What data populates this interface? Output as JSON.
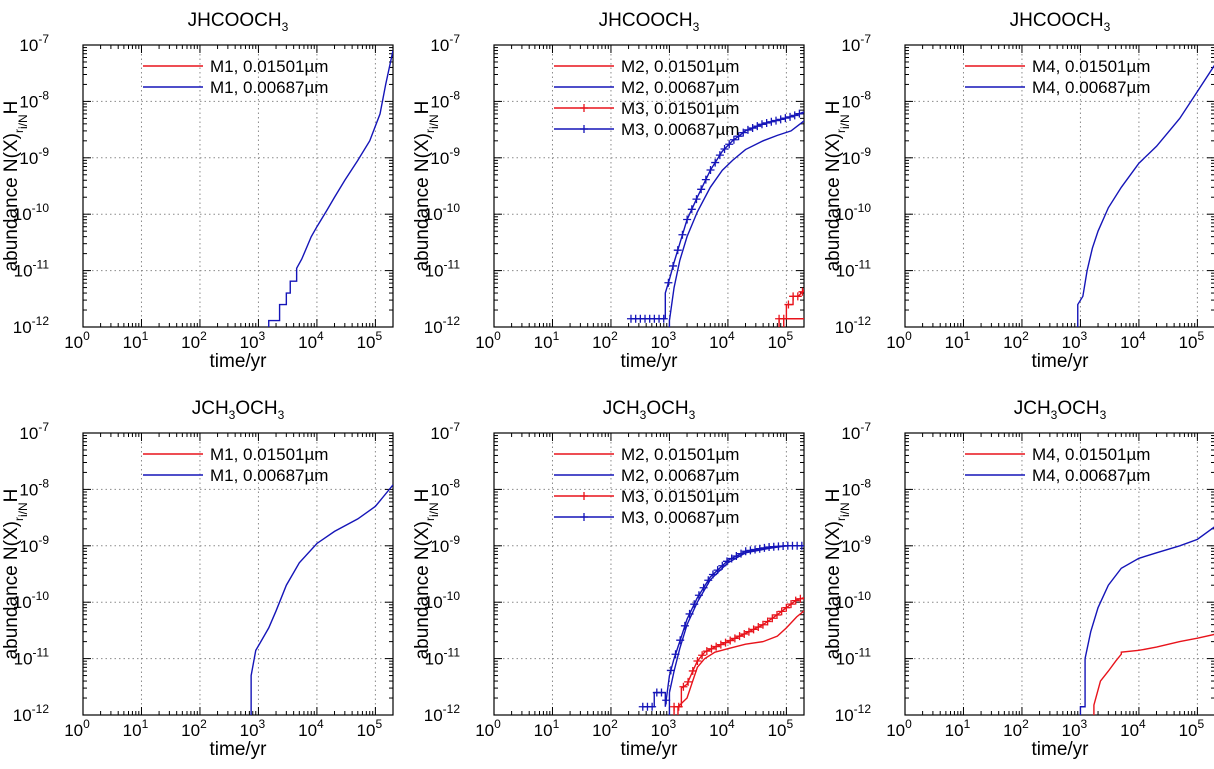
{
  "figure": {
    "panels_note": "6 panels, 2 rows x 3 columns"
  },
  "colors": {
    "red": "#e8131b",
    "blue": "#1515b8"
  },
  "chart_data": [
    {
      "type": "line",
      "title": [
        "J",
        "HCOOCH",
        "3"
      ],
      "xlabel": "time/yr",
      "ylabel": "abundance N(X)_r_i/N_H",
      "xscale": "log",
      "yscale": "log",
      "xlim": [
        1,
        200000
      ],
      "ylim": [
        1e-12,
        1e-07
      ],
      "xticks": [
        "10^0",
        "10^1",
        "10^2",
        "10^3",
        "10^4",
        "10^5"
      ],
      "yticks": [
        "10^-12",
        "10^-11",
        "10^-10",
        "10^-9",
        "10^-8",
        "10^-7"
      ],
      "grid": true,
      "legend_position": "top-left",
      "series": [
        {
          "name": "M1, 0.01501µm",
          "color": "red",
          "marker": false,
          "x": [],
          "y": []
        },
        {
          "name": "M1, 0.00687µm",
          "color": "blue",
          "marker": false,
          "x": [
            1500,
            1500,
            2300,
            2300,
            3000,
            3000,
            3500,
            3500,
            4500,
            4500,
            5500,
            6500,
            8000,
            10000,
            15000,
            20000,
            30000,
            50000,
            80000,
            120000,
            150000,
            200000
          ],
          "y": [
            1e-12,
            1.3e-12,
            1.3e-12,
            2.5e-12,
            2.5e-12,
            4e-12,
            4e-12,
            6.5e-12,
            6.5e-12,
            1.1e-11,
            1.6e-11,
            2.4e-11,
            4e-11,
            6e-11,
            1.2e-10,
            2e-10,
            4e-10,
            9e-10,
            2e-09,
            6e-09,
            2e-08,
            8e-08
          ]
        }
      ]
    },
    {
      "type": "line",
      "title": [
        "J",
        "HCOOCH",
        "3"
      ],
      "xlabel": "time/yr",
      "ylabel": "abundance N(X)_r_i/N_H",
      "xscale": "log",
      "yscale": "log",
      "xlim": [
        1,
        200000
      ],
      "ylim": [
        1e-12,
        1e-07
      ],
      "xticks": [
        "10^0",
        "10^1",
        "10^2",
        "10^3",
        "10^4",
        "10^5"
      ],
      "yticks": [
        "10^-12",
        "10^-11",
        "10^-10",
        "10^-9",
        "10^-8",
        "10^-7"
      ],
      "grid": true,
      "legend_position": "top-left",
      "series": [
        {
          "name": "M2, 0.01501µm",
          "color": "red",
          "marker": false,
          "x": [
            90000,
            90000,
            200000
          ],
          "y": [
            1e-12,
            1.4e-12,
            1.4e-12
          ]
        },
        {
          "name": "M2, 0.00687µm",
          "color": "blue",
          "marker": false,
          "x": [
            1000,
            1000,
            1200,
            1500,
            2000,
            3000,
            5000,
            8000,
            12000,
            20000,
            40000,
            70000,
            120000,
            200000
          ],
          "y": [
            1e-12,
            1.3e-12,
            5e-12,
            1.5e-11,
            4e-11,
            1.1e-10,
            3e-10,
            6e-10,
            9e-10,
            1.4e-09,
            2e-09,
            2.5e-09,
            3e-09,
            4.5e-09
          ]
        },
        {
          "name": "M3, 0.01501µm",
          "color": "red",
          "marker": true,
          "x": [
            75000,
            75000,
            100000,
            100000,
            130000,
            130000,
            160000,
            200000
          ],
          "y": [
            1e-12,
            1.4e-12,
            1.4e-12,
            2.5e-12,
            2.5e-12,
            3.5e-12,
            3.5e-12,
            4.5e-12
          ]
        },
        {
          "name": "M3, 0.00687µm",
          "color": "blue",
          "marker": true,
          "x": [
            220,
            330,
            480,
            620,
            850,
            850,
            1000,
            1200,
            1500,
            2000,
            3000,
            5000,
            8000,
            12000,
            20000,
            40000,
            80000,
            130000,
            200000
          ],
          "y": [
            1.4e-12,
            1.4e-12,
            1.4e-12,
            1.4e-12,
            1.4e-12,
            4e-12,
            7e-12,
            1.4e-11,
            3e-11,
            8e-11,
            2e-10,
            6e-10,
            1.3e-09,
            2e-09,
            3e-09,
            4e-09,
            4.8e-09,
            5.5e-09,
            6.5e-09
          ]
        }
      ]
    },
    {
      "type": "line",
      "title": [
        "J",
        "HCOOCH",
        "3"
      ],
      "xlabel": "time/yr",
      "ylabel": "abundance N(X)_r_i/N_H",
      "xscale": "log",
      "yscale": "log",
      "xlim": [
        1,
        200000
      ],
      "ylim": [
        1e-12,
        1e-07
      ],
      "xticks": [
        "10^0",
        "10^1",
        "10^2",
        "10^3",
        "10^4",
        "10^5"
      ],
      "yticks": [
        "10^-12",
        "10^-11",
        "10^-10",
        "10^-9",
        "10^-8",
        "10^-7"
      ],
      "grid": true,
      "legend_position": "top-left",
      "series": [
        {
          "name": "M4, 0.01501µm",
          "color": "red",
          "marker": false,
          "x": [],
          "y": []
        },
        {
          "name": "M4, 0.00687µm",
          "color": "blue",
          "marker": false,
          "x": [
            900,
            900,
            1100,
            1300,
            1600,
            2000,
            3000,
            5000,
            10000,
            20000,
            50000,
            100000,
            200000
          ],
          "y": [
            1e-12,
            2.5e-12,
            3.5e-12,
            1e-11,
            2.5e-11,
            5e-11,
            1.3e-10,
            3e-10,
            8e-10,
            1.6e-09,
            5e-09,
            1.5e-08,
            4.5e-08
          ]
        }
      ]
    },
    {
      "type": "line",
      "title": [
        "J",
        "CH",
        "3",
        "OCH",
        "3"
      ],
      "xlabel": "time/yr",
      "ylabel": "abundance N(X)_r_i/N_H",
      "xscale": "log",
      "yscale": "log",
      "xlim": [
        1,
        200000
      ],
      "ylim": [
        1e-12,
        1e-07
      ],
      "xticks": [
        "10^0",
        "10^1",
        "10^2",
        "10^3",
        "10^4",
        "10^5"
      ],
      "yticks": [
        "10^-12",
        "10^-11",
        "10^-10",
        "10^-9",
        "10^-8",
        "10^-7"
      ],
      "grid": true,
      "legend_position": "top-left",
      "series": [
        {
          "name": "M1, 0.01501µm",
          "color": "red",
          "marker": false,
          "x": [],
          "y": []
        },
        {
          "name": "M1, 0.00687µm",
          "color": "blue",
          "marker": false,
          "x": [
            750,
            750,
            900,
            1100,
            1500,
            2000,
            3000,
            5000,
            10000,
            20000,
            50000,
            100000,
            200000
          ],
          "y": [
            1e-12,
            5e-12,
            1.4e-11,
            2e-11,
            3.5e-11,
            7e-11,
            2e-10,
            5e-10,
            1.1e-09,
            1.8e-09,
            3e-09,
            5e-09,
            1.2e-08
          ]
        }
      ]
    },
    {
      "type": "line",
      "title": [
        "J",
        "CH",
        "3",
        "OCH",
        "3"
      ],
      "xlabel": "time/yr",
      "ylabel": "abundance N(X)_r_i/N_H",
      "xscale": "log",
      "yscale": "log",
      "xlim": [
        1,
        200000
      ],
      "ylim": [
        1e-12,
        1e-07
      ],
      "xticks": [
        "10^0",
        "10^1",
        "10^2",
        "10^3",
        "10^4",
        "10^5"
      ],
      "yticks": [
        "10^-12",
        "10^-11",
        "10^-10",
        "10^-9",
        "10^-8",
        "10^-7"
      ],
      "grid": true,
      "legend_position": "top-left",
      "series": [
        {
          "name": "M2, 0.01501µm",
          "color": "red",
          "marker": false,
          "x": [
            1400,
            1400,
            2000,
            2500,
            3000,
            4000,
            6000,
            10000,
            20000,
            40000,
            70000,
            100000,
            150000,
            200000
          ],
          "y": [
            1e-12,
            1.4e-12,
            2e-12,
            4e-12,
            7e-12,
            1e-11,
            1.3e-11,
            1.5e-11,
            1.8e-11,
            2e-11,
            2.5e-11,
            3.5e-11,
            5.5e-11,
            7e-11
          ]
        },
        {
          "name": "M2, 0.00687µm",
          "color": "blue",
          "marker": false,
          "x": [
            1000,
            1000,
            1200,
            1500,
            2000,
            3000,
            5000,
            10000,
            20000,
            50000,
            100000,
            200000
          ],
          "y": [
            1e-12,
            2.5e-12,
            6e-12,
            1.5e-11,
            4e-11,
            1e-10,
            2.5e-10,
            5e-10,
            7.5e-10,
            9e-10,
            1e-09,
            1e-09
          ]
        },
        {
          "name": "M3, 0.01501µm",
          "color": "red",
          "marker": true,
          "x": [
            1200,
            1200,
            1600,
            1600,
            2000,
            2500,
            3000,
            4000,
            6000,
            10000,
            20000,
            40000,
            70000,
            100000,
            150000,
            200000
          ],
          "y": [
            1e-12,
            1.4e-12,
            1.4e-12,
            3e-12,
            3.5e-12,
            6e-12,
            9e-12,
            1.3e-11,
            1.6e-11,
            2e-11,
            2.8e-11,
            4e-11,
            6e-11,
            8e-11,
            1.1e-10,
            1.2e-10
          ]
        },
        {
          "name": "M3, 0.00687µm",
          "color": "blue",
          "marker": true,
          "x": [
            350,
            450,
            550,
            550,
            700,
            850,
            850,
            1000,
            1200,
            1500,
            2000,
            3000,
            5000,
            10000,
            20000,
            50000,
            100000,
            200000
          ],
          "y": [
            1.4e-12,
            1.4e-12,
            1.4e-12,
            2.5e-12,
            2.5e-12,
            2.5e-12,
            1.4e-12,
            5e-12,
            1e-11,
            2e-11,
            5e-11,
            1.2e-10,
            2.8e-10,
            5.5e-10,
            8e-10,
            9.5e-10,
            1e-09,
            1e-09
          ]
        }
      ]
    },
    {
      "type": "line",
      "title": [
        "J",
        "CH",
        "3",
        "OCH",
        "3"
      ],
      "xlabel": "time/yr",
      "ylabel": "abundance N(X)_r_i/N_H",
      "xscale": "log",
      "yscale": "log",
      "xlim": [
        1,
        200000
      ],
      "ylim": [
        1e-12,
        1e-07
      ],
      "xticks": [
        "10^0",
        "10^1",
        "10^2",
        "10^3",
        "10^4",
        "10^5"
      ],
      "yticks": [
        "10^-12",
        "10^-11",
        "10^-10",
        "10^-9",
        "10^-8",
        "10^-7"
      ],
      "grid": true,
      "legend_position": "top-left",
      "series": [
        {
          "name": "M4, 0.01501µm",
          "color": "red",
          "marker": false,
          "x": [
            1700,
            1700,
            2200,
            3000,
            4000,
            5000,
            5000,
            10000,
            20000,
            50000,
            100000,
            200000
          ],
          "y": [
            1e-12,
            1.5e-12,
            4e-12,
            6e-12,
            9e-12,
            1.2e-11,
            1.3e-11,
            1.4e-11,
            1.6e-11,
            2e-11,
            2.3e-11,
            2.7e-11
          ]
        },
        {
          "name": "M4, 0.00687µm",
          "color": "blue",
          "marker": false,
          "x": [
            1000,
            1000,
            1200,
            1200,
            1500,
            2000,
            3000,
            5000,
            10000,
            20000,
            50000,
            100000,
            200000
          ],
          "y": [
            1e-12,
            1.4e-12,
            1.4e-12,
            1e-11,
            3e-11,
            8e-11,
            2e-10,
            4e-10,
            6e-10,
            7.5e-10,
            1e-09,
            1.3e-09,
            2.2e-09
          ]
        }
      ]
    }
  ]
}
